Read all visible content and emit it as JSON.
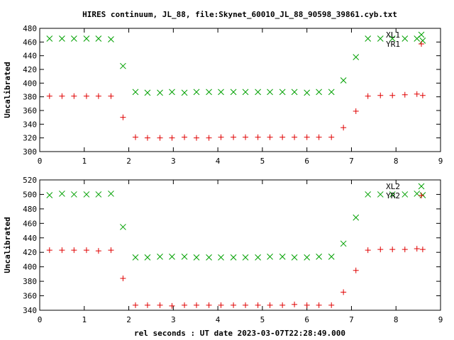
{
  "title": "HIRES continuum, JL_88, file:Skynet_60010_JL_88_90598_39861.cyb.txt",
  "xlabel": "rel seconds : UT date 2023-03-07T22:28:49.000",
  "colors": {
    "x_series": "#00a000",
    "plus_series": "#e00000"
  },
  "chart_data": [
    {
      "type": "scatter",
      "ylabel": "Uncalibrated",
      "xlim": [
        0,
        9
      ],
      "ylim": [
        300,
        480
      ],
      "xticks": [
        0,
        1,
        2,
        3,
        4,
        5,
        6,
        7,
        8,
        9
      ],
      "yticks": [
        300,
        320,
        340,
        360,
        380,
        400,
        420,
        440,
        460,
        480
      ],
      "legend_position": "top-right",
      "series": [
        {
          "name": "XL1",
          "marker": "x",
          "color": "#00a000",
          "points": [
            [
              0.22,
              465
            ],
            [
              0.5,
              465
            ],
            [
              0.77,
              465
            ],
            [
              1.05,
              465
            ],
            [
              1.32,
              465
            ],
            [
              1.6,
              464
            ],
            [
              1.87,
              425
            ],
            [
              2.15,
              387
            ],
            [
              2.42,
              386
            ],
            [
              2.7,
              386
            ],
            [
              2.97,
              387
            ],
            [
              3.25,
              386
            ],
            [
              3.52,
              387
            ],
            [
              3.8,
              387
            ],
            [
              4.07,
              387
            ],
            [
              4.35,
              387
            ],
            [
              4.62,
              387
            ],
            [
              4.9,
              387
            ],
            [
              5.17,
              387
            ],
            [
              5.45,
              387
            ],
            [
              5.72,
              387
            ],
            [
              6.0,
              386
            ],
            [
              6.27,
              387
            ],
            [
              6.55,
              387
            ],
            [
              6.82,
              404
            ],
            [
              7.1,
              438
            ],
            [
              7.37,
              465
            ],
            [
              7.65,
              465
            ],
            [
              7.92,
              465
            ],
            [
              8.2,
              465
            ],
            [
              8.47,
              465
            ],
            [
              8.6,
              462
            ]
          ]
        },
        {
          "name": "YR1",
          "marker": "+",
          "color": "#e00000",
          "points": [
            [
              0.22,
              381
            ],
            [
              0.5,
              381
            ],
            [
              0.77,
              381
            ],
            [
              1.05,
              381
            ],
            [
              1.32,
              381
            ],
            [
              1.6,
              381
            ],
            [
              1.87,
              350
            ],
            [
              2.15,
              321
            ],
            [
              2.42,
              320
            ],
            [
              2.7,
              320
            ],
            [
              2.97,
              320
            ],
            [
              3.25,
              321
            ],
            [
              3.52,
              320
            ],
            [
              3.8,
              320
            ],
            [
              4.07,
              321
            ],
            [
              4.35,
              321
            ],
            [
              4.62,
              321
            ],
            [
              4.9,
              321
            ],
            [
              5.17,
              321
            ],
            [
              5.45,
              321
            ],
            [
              5.72,
              321
            ],
            [
              6.0,
              321
            ],
            [
              6.27,
              321
            ],
            [
              6.55,
              321
            ],
            [
              6.82,
              335
            ],
            [
              7.1,
              359
            ],
            [
              7.37,
              381
            ],
            [
              7.65,
              382
            ],
            [
              7.92,
              382
            ],
            [
              8.2,
              383
            ],
            [
              8.47,
              384
            ],
            [
              8.6,
              382
            ]
          ]
        }
      ]
    },
    {
      "type": "scatter",
      "ylabel": "Uncalibrated",
      "xlim": [
        0,
        9
      ],
      "ylim": [
        340,
        520
      ],
      "xticks": [
        0,
        1,
        2,
        3,
        4,
        5,
        6,
        7,
        8,
        9
      ],
      "yticks": [
        340,
        360,
        380,
        400,
        420,
        440,
        460,
        480,
        500,
        520
      ],
      "legend_position": "top-right",
      "series": [
        {
          "name": "XL2",
          "marker": "x",
          "color": "#00a000",
          "points": [
            [
              0.22,
              499
            ],
            [
              0.5,
              501
            ],
            [
              0.77,
              500
            ],
            [
              1.05,
              500
            ],
            [
              1.32,
              500
            ],
            [
              1.6,
              501
            ],
            [
              1.87,
              455
            ],
            [
              2.15,
              413
            ],
            [
              2.42,
              413
            ],
            [
              2.7,
              414
            ],
            [
              2.97,
              414
            ],
            [
              3.25,
              414
            ],
            [
              3.52,
              413
            ],
            [
              3.8,
              413
            ],
            [
              4.07,
              413
            ],
            [
              4.35,
              413
            ],
            [
              4.62,
              413
            ],
            [
              4.9,
              413
            ],
            [
              5.17,
              414
            ],
            [
              5.45,
              414
            ],
            [
              5.72,
              413
            ],
            [
              6.0,
              413
            ],
            [
              6.27,
              414
            ],
            [
              6.55,
              414
            ],
            [
              6.82,
              432
            ],
            [
              7.1,
              468
            ],
            [
              7.37,
              500
            ],
            [
              7.65,
              500
            ],
            [
              7.92,
              500
            ],
            [
              8.2,
              500
            ],
            [
              8.47,
              501
            ],
            [
              8.6,
              499
            ]
          ]
        },
        {
          "name": "YR2",
          "marker": "+",
          "color": "#e00000",
          "points": [
            [
              0.22,
              423
            ],
            [
              0.5,
              423
            ],
            [
              0.77,
              423
            ],
            [
              1.05,
              423
            ],
            [
              1.32,
              422
            ],
            [
              1.6,
              423
            ],
            [
              1.87,
              384
            ],
            [
              2.15,
              347
            ],
            [
              2.42,
              347
            ],
            [
              2.7,
              347
            ],
            [
              2.97,
              346
            ],
            [
              3.25,
              347
            ],
            [
              3.52,
              347
            ],
            [
              3.8,
              347
            ],
            [
              4.07,
              347
            ],
            [
              4.35,
              347
            ],
            [
              4.62,
              347
            ],
            [
              4.9,
              347
            ],
            [
              5.17,
              347
            ],
            [
              5.45,
              347
            ],
            [
              5.72,
              348
            ],
            [
              6.0,
              347
            ],
            [
              6.27,
              347
            ],
            [
              6.55,
              347
            ],
            [
              6.82,
              365
            ],
            [
              7.1,
              395
            ],
            [
              7.37,
              423
            ],
            [
              7.65,
              424
            ],
            [
              7.92,
              424
            ],
            [
              8.2,
              424
            ],
            [
              8.47,
              425
            ],
            [
              8.6,
              424
            ]
          ]
        }
      ]
    }
  ]
}
